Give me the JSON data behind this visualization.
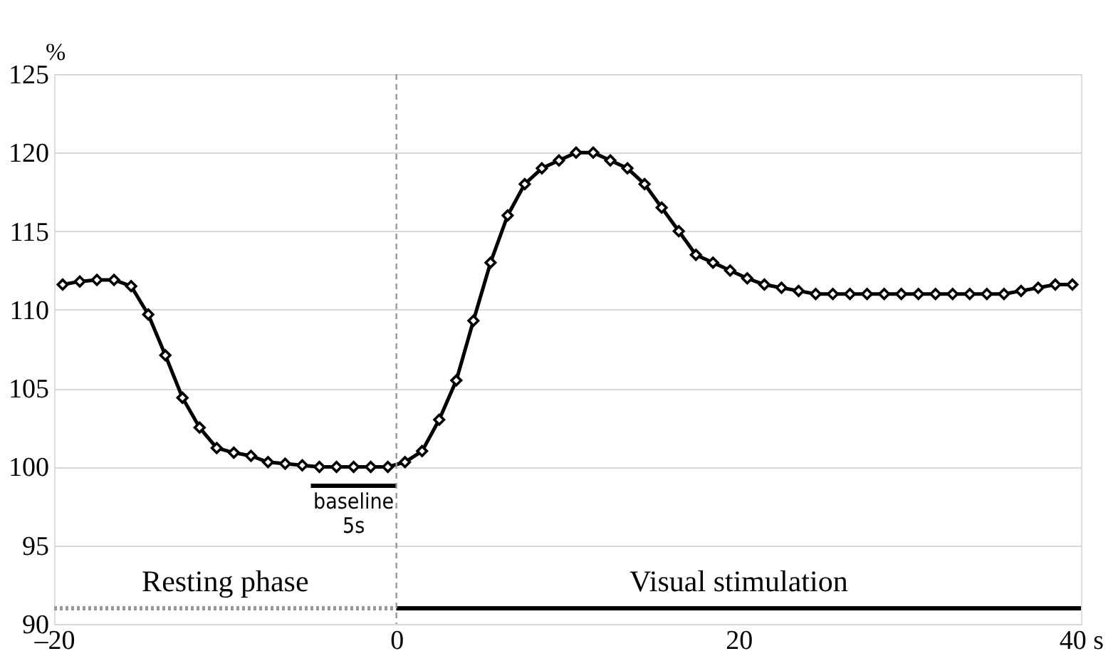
{
  "chart_data": {
    "type": "line",
    "ylabel": "%",
    "xlim": [
      -20,
      40
    ],
    "ylim": [
      90,
      125
    ],
    "xticks": [
      {
        "value": -20,
        "label": "–20"
      },
      0,
      20,
      {
        "value": 40,
        "label": "40 s"
      }
    ],
    "yticks": [
      90,
      95,
      100,
      105,
      110,
      115,
      120,
      125
    ],
    "grid": "y",
    "series": [
      {
        "color": "#000000",
        "marker": "diamond",
        "line_style": "solid",
        "x": [
          -19.5,
          -18.5,
          -17.5,
          -16.5,
          -15.5,
          -14.5,
          -13.5,
          -12.5,
          -11.5,
          -10.5,
          -9.5,
          -8.5,
          -7.5,
          -6.5,
          -5.5,
          -4.5,
          -3.5,
          -2.5,
          -1.5,
          -0.5,
          0.5,
          1.5,
          2.5,
          3.5,
          4.5,
          5.5,
          6.5,
          7.5,
          8.5,
          9.5,
          10.5,
          11.5,
          12.5,
          13.5,
          14.5,
          15.5,
          16.5,
          17.5,
          18.5,
          19.5,
          20.5,
          21.5,
          22.5,
          23.5,
          24.5,
          25.5,
          26.5,
          27.5,
          28.5,
          29.5,
          30.5,
          31.5,
          32.5,
          33.5,
          34.5,
          35.5,
          36.5,
          37.5,
          38.5,
          39.5
        ],
        "values": [
          111.6,
          111.8,
          111.9,
          111.9,
          111.5,
          109.7,
          107.1,
          104.4,
          102.5,
          101.2,
          100.9,
          100.7,
          100.3,
          100.2,
          100.1,
          100.0,
          100.0,
          100.0,
          100.0,
          100.0,
          100.3,
          101.0,
          103.0,
          105.5,
          109.3,
          113.0,
          116.0,
          118.0,
          119.0,
          119.5,
          120.0,
          120.0,
          119.5,
          119.0,
          118.0,
          116.5,
          115.0,
          113.5,
          113.0,
          112.5,
          112.0,
          111.6,
          111.4,
          111.2,
          111.0,
          111.0,
          111.0,
          111.0,
          111.0,
          111.0,
          111.0,
          111.0,
          111.0,
          111.0,
          111.0,
          111.0,
          111.2,
          111.4,
          111.6,
          111.6
        ]
      },
      {
        "name": "Resting phase",
        "color": "#999999",
        "marker": "none",
        "line_style": "dotted",
        "x": [
          -20,
          0
        ],
        "values": [
          91,
          91
        ]
      },
      {
        "name": "Visual stimulation",
        "color": "#000000",
        "marker": "none",
        "line_style": "solid",
        "x": [
          0,
          40
        ],
        "values": [
          91,
          91
        ]
      },
      {
        "color": "#000000",
        "marker": "none",
        "line_style": "solid",
        "x": [
          -5,
          0
        ],
        "values": [
          98.8,
          98.8
        ]
      }
    ],
    "ref_lines": [
      {
        "axis": "x",
        "value": 0,
        "color": "#999999",
        "line_style": "dashed"
      }
    ],
    "annotations": [
      {
        "text": "baseline\n5s",
        "x": -2.5,
        "y": 98.8
      }
    ]
  }
}
